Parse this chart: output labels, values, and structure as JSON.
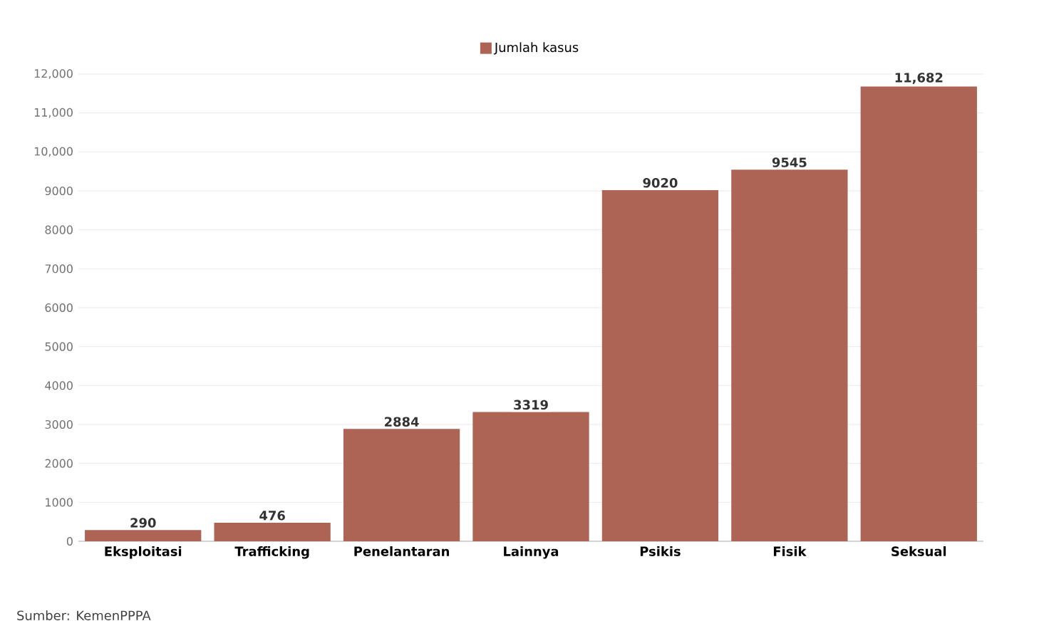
{
  "chart_data": {
    "type": "bar",
    "categories": [
      "Eksploitasi",
      "Trafficking",
      "Penelantaran",
      "Lainnya",
      "Psikis",
      "Fisik",
      "Seksual"
    ],
    "series": [
      {
        "name": "Jumlah kasus",
        "color": "#ad6455",
        "values": [
          290,
          476,
          2884,
          3319,
          9020,
          9545,
          11682
        ],
        "value_labels": [
          "290",
          "476",
          "2884",
          "3319",
          "9020",
          "9545",
          "11,682"
        ]
      }
    ],
    "ylim": [
      0,
      12000
    ],
    "yticks": [
      0,
      1000,
      2000,
      3000,
      4000,
      5000,
      6000,
      7000,
      8000,
      9000,
      {
        "value": 10000,
        "label": "10,000"
      },
      {
        "value": 11000,
        "label": "11,000"
      },
      {
        "value": 12000,
        "label": "12,000"
      }
    ],
    "grid": "y",
    "legend": "top",
    "annotations": [
      "Sumber: KemenPPPA"
    ]
  }
}
